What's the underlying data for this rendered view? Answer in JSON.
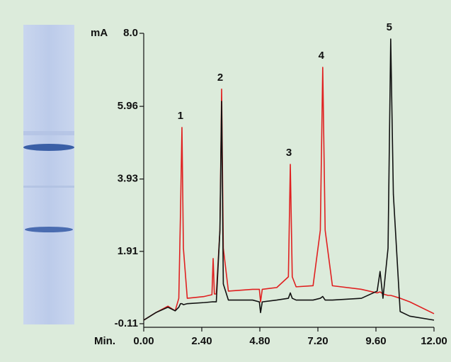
{
  "chart_data": {
    "type": "line",
    "y_label": "mA",
    "x_label": "Min.",
    "xlim": [
      0,
      12
    ],
    "ylim": [
      -0.21,
      8.0
    ],
    "xticks": [
      {
        "value": 0,
        "label": "0.00"
      },
      {
        "value": 2.4,
        "label": "2.40"
      },
      {
        "value": 4.8,
        "label": "4.80"
      },
      {
        "value": 7.2,
        "label": "7.20"
      },
      {
        "value": 9.6,
        "label": "9.60"
      },
      {
        "value": 12,
        "label": "12.00"
      }
    ],
    "yticks": [
      -0.11,
      1.91,
      3.93,
      5.96,
      {
        "value": 8,
        "label": "8.0"
      }
    ],
    "x": [
      0,
      0.5,
      1.0,
      1.3,
      1.45,
      1.52,
      1.58,
      1.64,
      1.8,
      2.5,
      2.82,
      2.87,
      2.92,
      3.0,
      3.15,
      3.22,
      3.29,
      3.5,
      4.5,
      4.78,
      4.83,
      4.9,
      5.5,
      5.98,
      6.06,
      6.14,
      6.3,
      7.0,
      7.3,
      7.4,
      7.5,
      7.8,
      9.0,
      9.65,
      9.77,
      9.89,
      10.1,
      10.21,
      10.32,
      10.6,
      11.0,
      12.0
    ],
    "series": [
      {
        "color": "#e02020",
        "values": [
          -0.01,
          0.2,
          0.38,
          0.25,
          0.6,
          3.0,
          5.37,
          2.0,
          0.6,
          0.65,
          0.7,
          1.71,
          0.72,
          0.72,
          2.5,
          6.44,
          2.0,
          0.8,
          0.85,
          0.85,
          0.5,
          0.85,
          0.9,
          1.2,
          4.34,
          1.2,
          0.92,
          0.95,
          2.5,
          7.05,
          2.5,
          0.95,
          0.85,
          0.75,
          0.78,
          0.72,
          0.68,
          0.68,
          0.66,
          0.6,
          0.5,
          0.17
        ]
      },
      {
        "color": "#111111",
        "values": [
          -0.01,
          0.2,
          0.35,
          0.25,
          0.35,
          0.45,
          0.45,
          0.42,
          0.45,
          0.48,
          0.5,
          0.5,
          0.5,
          0.5,
          2.5,
          6.1,
          1.0,
          0.55,
          0.55,
          0.5,
          0.2,
          0.5,
          0.55,
          0.6,
          0.75,
          0.6,
          0.55,
          0.55,
          0.6,
          0.65,
          0.55,
          0.55,
          0.6,
          0.8,
          1.35,
          0.6,
          2.0,
          7.84,
          3.5,
          0.23,
          0.1,
          -0.01
        ]
      }
    ],
    "annotations": [
      {
        "text": "1",
        "x": 1.58
      },
      {
        "text": "2",
        "x": 3.22
      },
      {
        "text": "3",
        "x": 6.06
      },
      {
        "text": "4",
        "x": 7.4
      },
      {
        "text": "5",
        "x": 10.21
      }
    ]
  }
}
